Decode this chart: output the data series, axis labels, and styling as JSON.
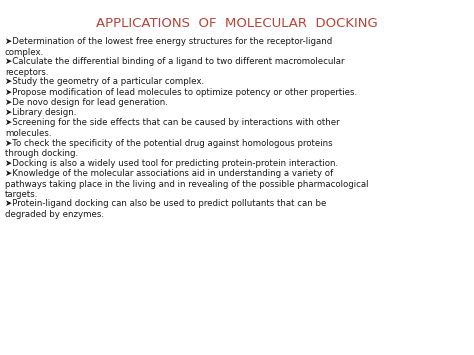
{
  "title": "APPLICATIONS  OF  MOLECULAR  DOCKING",
  "title_color": "#b5453a",
  "title_fontsize": 9.5,
  "background_color": "#ffffff",
  "bullet_color": "#1a1a1a",
  "bullet_fontsize": 6.2,
  "bullets": [
    "Determination of the lowest free energy structures for the receptor-ligand\ncomplex.",
    "Calculate the differential binding of a ligand to two different macromolecular\nreceptors.",
    "Study the geometry of a particular complex.",
    "Propose modification of lead molecules to optimize potency or other properties.",
    "De novo design for lead generation.",
    "Library design.",
    "Screening for the side effects that can be caused by interactions with other\nmolecules.",
    "To check the specificity of the potential drug against homologous proteins\nthrough docking.",
    "Docking is also a widely used tool for predicting protein-protein interaction.",
    "Knowledge of the molecular associations aid in understanding a variety of\npathways taking place in the living and in revealing of the possible pharmacological\ntargets.",
    "Protein-ligand docking can also be used to predict pollutants that can be\ndegraded by enzymes."
  ],
  "line_heights": [
    2,
    2,
    1,
    1,
    1,
    1,
    2,
    2,
    1,
    3,
    2
  ]
}
